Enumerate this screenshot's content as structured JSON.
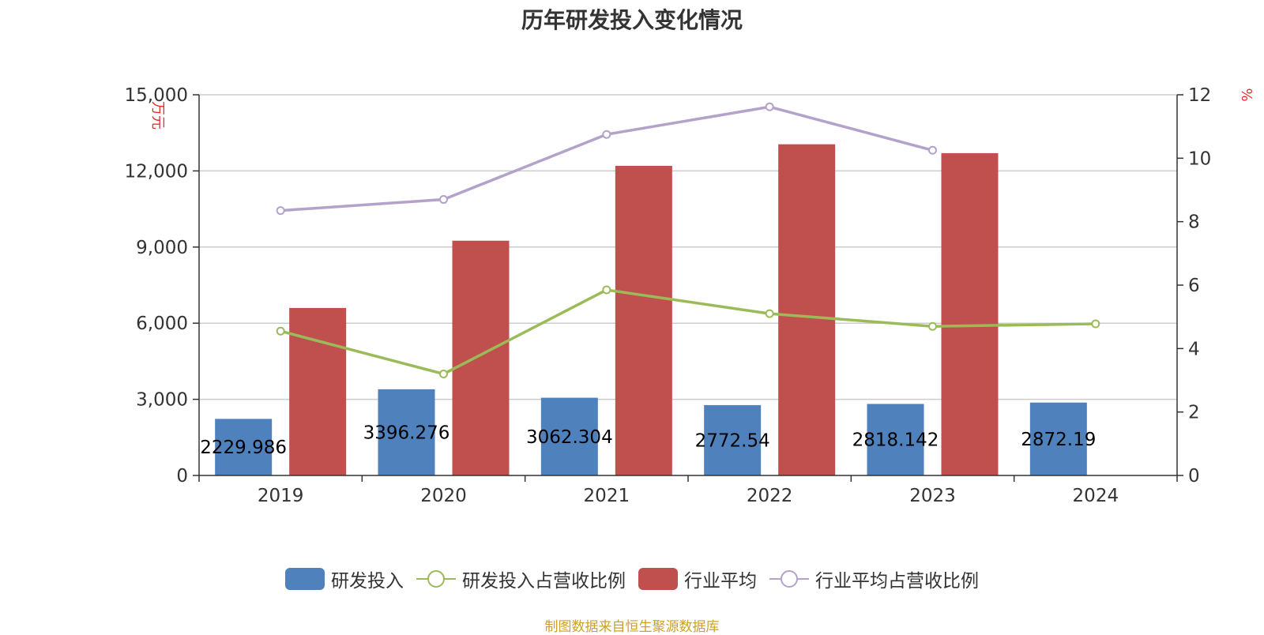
{
  "title": "历年研发投入变化情况",
  "source": "制图数据来自恒生聚源数据库",
  "colors": {
    "rd": "#4f81bd",
    "rd_ratio": "#9bbb59",
    "industry": "#c0504d",
    "industry_ratio": "#b3a2c9",
    "grid": "#cccccc",
    "axis": "#333333",
    "unit": "#e03030",
    "source": "#c9a227"
  },
  "chart_data": {
    "type": "bar",
    "categories": [
      "2019",
      "2020",
      "2021",
      "2022",
      "2023",
      "2024"
    ],
    "y_left": {
      "label": "万元",
      "min": 0,
      "max": 15000,
      "ticks": [
        "0",
        "3,000",
        "6,000",
        "9,000",
        "12,000",
        "15,000"
      ]
    },
    "y_right": {
      "label": "%",
      "min": 0,
      "max": 12,
      "ticks": [
        "0",
        "2",
        "4",
        "6",
        "8",
        "10",
        "12"
      ]
    },
    "grid": true,
    "legend_position": "bottom",
    "series": [
      {
        "name": "研发投入",
        "kind": "bar",
        "axis": "left",
        "values": [
          2229.986,
          3396.276,
          3062.304,
          2772.54,
          2818.142,
          2872.19
        ],
        "labels": [
          "2229.986",
          "3396.276",
          "3062.304",
          "2772.54",
          "2818.142",
          "2872.19"
        ]
      },
      {
        "name": "研发投入占营收比例",
        "kind": "line",
        "axis": "right",
        "values": [
          4.55,
          3.2,
          5.85,
          5.1,
          4.7,
          4.78
        ]
      },
      {
        "name": "行业平均",
        "kind": "bar",
        "axis": "left",
        "values": [
          6600,
          9250,
          12200,
          13050,
          12700,
          null
        ]
      },
      {
        "name": "行业平均占营收比例",
        "kind": "line",
        "axis": "right",
        "values": [
          8.35,
          8.7,
          10.75,
          11.62,
          10.25,
          null
        ]
      }
    ]
  }
}
